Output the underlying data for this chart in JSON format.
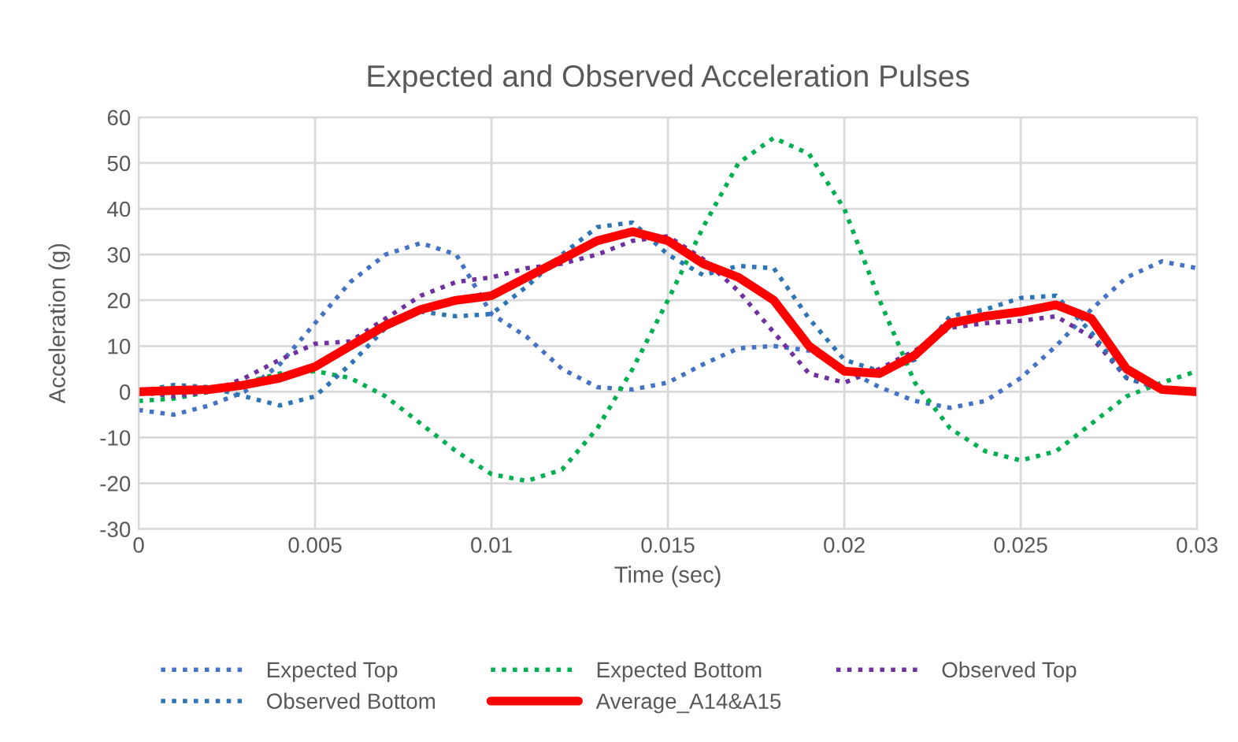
{
  "chart_data": {
    "type": "line",
    "title": "Expected and Observed Acceleration Pulses",
    "xlabel": "Time (sec)",
    "ylabel": "Acceleration (g)",
    "x": [
      0,
      0.001,
      0.002,
      0.003,
      0.004,
      0.005,
      0.006,
      0.007,
      0.008,
      0.009,
      0.01,
      0.011,
      0.012,
      0.013,
      0.014,
      0.015,
      0.016,
      0.017,
      0.018,
      0.019,
      0.02,
      0.021,
      0.022,
      0.023,
      0.024,
      0.025,
      0.026,
      0.027,
      0.028,
      0.029,
      0.03
    ],
    "series": [
      {
        "name": "Expected Top",
        "color": "#4472c4",
        "line_style": "dotted",
        "values": [
          -4,
          -5,
          -3,
          0,
          6,
          15,
          24,
          30,
          32.5,
          30,
          17,
          12,
          5,
          1,
          0.5,
          2,
          6,
          9.5,
          10,
          9,
          5,
          1,
          -2,
          -3.5,
          -2,
          3,
          10,
          18,
          25,
          28.5,
          27
        ]
      },
      {
        "name": "Expected Bottom",
        "color": "#00b050",
        "line_style": "dotted",
        "values": [
          -2,
          -1.5,
          0,
          2,
          4,
          4.5,
          3,
          -1,
          -7,
          -13,
          -18,
          -19.5,
          -17,
          -8,
          5,
          20,
          36,
          50,
          55.5,
          52,
          40,
          20,
          2,
          -8,
          -13,
          -15,
          -13,
          -7,
          -1,
          2,
          4.5
        ]
      },
      {
        "name": "Observed Top",
        "color": "#7030a0",
        "line_style": "dotted",
        "values": [
          0,
          -1,
          0,
          3,
          7,
          10.5,
          11,
          16,
          21,
          24,
          25,
          27,
          28,
          30,
          33,
          34,
          29,
          22,
          13,
          4,
          2,
          5,
          9,
          14,
          15,
          15.5,
          16.5,
          12,
          3,
          0.5,
          0
        ]
      },
      {
        "name": "Observed Bottom",
        "color": "#2e75b6",
        "line_style": "dotted",
        "values": [
          0,
          1.5,
          1,
          -1,
          -3,
          -1,
          6,
          14,
          17.5,
          16.5,
          17,
          23,
          30,
          36,
          37,
          30,
          25.5,
          27.5,
          27,
          16,
          7,
          4.5,
          7,
          16.5,
          18,
          20.5,
          21,
          13,
          3,
          0.5,
          0
        ]
      },
      {
        "name": "Average_A14&A15",
        "color": "#ff0000",
        "line_style": "solid",
        "values": [
          0,
          0.3,
          0.5,
          1.5,
          3,
          5.5,
          10,
          14.5,
          18,
          20,
          21,
          25,
          29,
          33,
          35,
          33,
          28,
          25,
          20,
          10,
          4.5,
          4,
          8,
          15,
          16.5,
          17.5,
          19,
          16,
          5,
          0.5,
          0
        ]
      }
    ],
    "xlim": [
      0,
      0.03
    ],
    "xticks": [
      0,
      0.005,
      0.01,
      0.015,
      0.02,
      0.025,
      0.03
    ],
    "ylim": [
      -30,
      60
    ],
    "yticks": [
      -30,
      -20,
      -10,
      0,
      10,
      20,
      30,
      40,
      50,
      60
    ],
    "grid": true,
    "legend": "bottom"
  }
}
